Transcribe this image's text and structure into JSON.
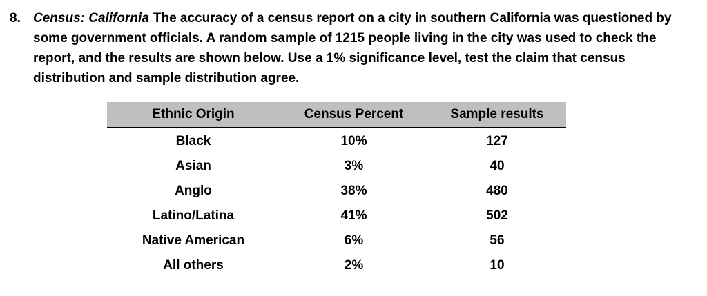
{
  "problem": {
    "number": "8.",
    "title": "Census: California",
    "text": "The accuracy of a census report on a city in southern California was questioned by some government officials.  A random sample of 1215 people living in the city was used to check the report, and the results are shown below.  Use a 1% significance level, test the claim that census distribution and sample distribution agree."
  },
  "table": {
    "headers": [
      "Ethnic Origin",
      "Census Percent",
      "Sample results"
    ],
    "rows": [
      [
        "Black",
        "10%",
        "127"
      ],
      [
        "Asian",
        "3%",
        "40"
      ],
      [
        "Anglo",
        "38%",
        "480"
      ],
      [
        "Latino/Latina",
        "41%",
        "502"
      ],
      [
        "Native American",
        "6%",
        "56"
      ],
      [
        "All others",
        "2%",
        "10"
      ]
    ]
  },
  "colors": {
    "header_bg": "#bfbfbf",
    "text": "#000000",
    "background": "#ffffff"
  }
}
